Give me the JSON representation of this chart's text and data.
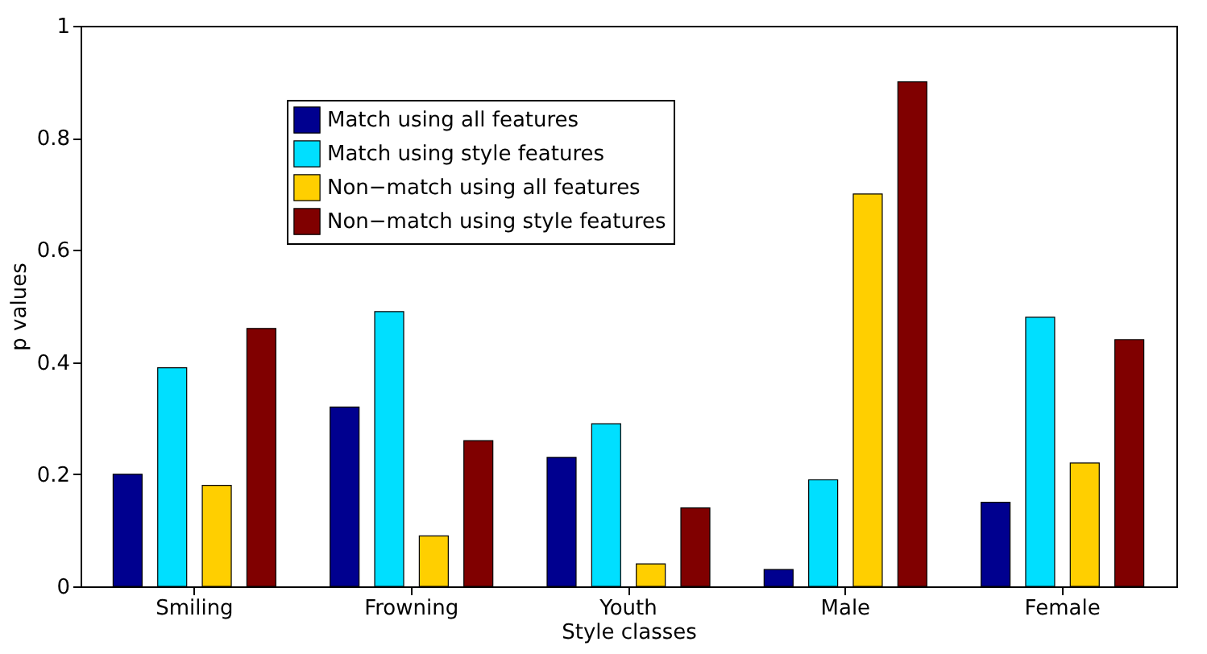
{
  "chart_data": {
    "type": "bar",
    "xlabel": "Style classes",
    "ylabel": "p values",
    "categories": [
      "Smiling",
      "Frowning",
      "Youth",
      "Male",
      "Female"
    ],
    "series": [
      {
        "name": "Match using all features",
        "color": "#00008f",
        "values": [
          0.2,
          0.32,
          0.23,
          0.03,
          0.15
        ]
      },
      {
        "name": "Match using style features",
        "color": "#00dfff",
        "values": [
          0.39,
          0.49,
          0.29,
          0.19,
          0.48
        ]
      },
      {
        "name": "Non−match using all features",
        "color": "#ffcf00",
        "values": [
          0.18,
          0.09,
          0.04,
          0.7,
          0.22
        ]
      },
      {
        "name": "Non−match using style features",
        "color": "#800000",
        "values": [
          0.46,
          0.26,
          0.14,
          0.9,
          0.44
        ]
      }
    ],
    "ylim": [
      0,
      1
    ],
    "yticks": [
      0,
      0.2,
      0.4,
      0.6,
      0.8,
      1
    ],
    "legend": "top left",
    "grid": false
  }
}
